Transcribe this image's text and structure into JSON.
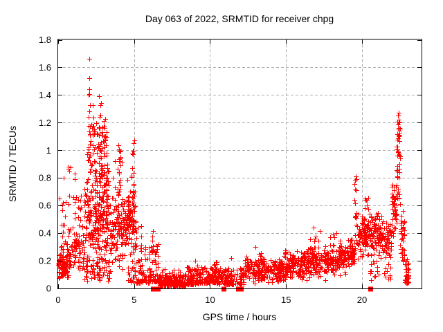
{
  "chart_data": {
    "type": "scatter",
    "title": "Day 063 of 2022, SRMTID for receiver chpg",
    "xlabel": "GPS time / hours",
    "ylabel": "SRMTID / TECUs",
    "xlim": [
      0,
      23.92
    ],
    "ylim": [
      0,
      1.8
    ],
    "xticks": [
      0,
      5,
      10,
      15,
      20
    ],
    "xtick_labels": [
      "0",
      "5",
      "10",
      "15",
      "20"
    ],
    "yticks": [
      0,
      0.2,
      0.4,
      0.6,
      0.8,
      1,
      1.2,
      1.4,
      1.6,
      1.8
    ],
    "ytick_labels": [
      "0",
      "0.2",
      "0.4",
      "0.6",
      "0.8",
      "1",
      "1.2",
      "1.4",
      "1.6",
      "1.8"
    ],
    "grid": {
      "visible": true,
      "style": "dashed",
      "color": "#aaaaaa"
    },
    "legend": "none",
    "marker": {
      "shape": "plus",
      "size": 7,
      "color": "#ff0000"
    },
    "flagged_squares_y0": [
      6.25,
      6.55,
      10.9,
      11.85,
      12.05,
      20.55
    ],
    "notable_points": [
      [
        2.06,
        1.66
      ],
      [
        2.06,
        1.52
      ],
      [
        22.42,
        1.27
      ],
      [
        0.35,
        0.8
      ],
      [
        0.7,
        0.88
      ],
      [
        0.1,
        0.65
      ],
      [
        5.0,
        1.07
      ],
      [
        4.9,
        0.97
      ],
      [
        5.3,
        0.44
      ],
      [
        0.3,
        0.62
      ],
      [
        13.0,
        0.3
      ],
      [
        16.8,
        0.44
      ],
      [
        18.3,
        0.4
      ],
      [
        9.0,
        0.2
      ],
      [
        11.4,
        0.22
      ],
      [
        19.55,
        0.78
      ]
    ],
    "cloud_seed": 2022063,
    "cloud_clusters": [
      [
        0.0,
        0.6,
        85,
        0.04,
        0.28,
        "mid"
      ],
      [
        0.0,
        0.6,
        12,
        0.26,
        0.48,
        "u"
      ],
      [
        0.25,
        0.55,
        5,
        0.5,
        0.72,
        "u"
      ],
      [
        0.55,
        1.2,
        42,
        0.06,
        0.45,
        "mid"
      ],
      [
        0.6,
        1.2,
        14,
        0.42,
        0.88,
        "u"
      ],
      [
        1.05,
        1.7,
        48,
        0.08,
        0.52,
        "mid"
      ],
      [
        1.2,
        1.6,
        8,
        0.5,
        0.68,
        "u"
      ],
      [
        1.7,
        3.4,
        250,
        0.12,
        0.92,
        "mid"
      ],
      [
        1.9,
        3.25,
        85,
        0.78,
        1.22,
        "u"
      ],
      [
        2.0,
        2.12,
        10,
        0.9,
        1.45,
        "u"
      ],
      [
        2.28,
        2.42,
        8,
        1.0,
        1.36,
        "u"
      ],
      [
        2.68,
        2.82,
        10,
        0.88,
        1.4,
        "u"
      ],
      [
        2.98,
        3.1,
        8,
        0.85,
        1.24,
        "u"
      ],
      [
        1.7,
        3.4,
        60,
        0.05,
        0.22,
        "u"
      ],
      [
        3.4,
        4.3,
        105,
        0.1,
        0.72,
        "mid"
      ],
      [
        3.9,
        4.12,
        14,
        0.68,
        1.04,
        "u"
      ],
      [
        3.5,
        4.25,
        10,
        0.72,
        0.95,
        "u"
      ],
      [
        4.3,
        5.15,
        125,
        0.14,
        0.8,
        "mid"
      ],
      [
        4.82,
        4.98,
        10,
        0.7,
        1.06,
        "u"
      ],
      [
        4.55,
        5.15,
        22,
        0.04,
        0.16,
        "u"
      ],
      [
        5.15,
        6.0,
        50,
        0.04,
        0.3,
        "low"
      ],
      [
        5.32,
        5.48,
        10,
        0.14,
        0.46,
        "u"
      ],
      [
        6.0,
        6.6,
        55,
        0.05,
        0.32,
        "low"
      ],
      [
        6.18,
        6.32,
        8,
        0.25,
        0.43,
        "u"
      ],
      [
        6.6,
        8.4,
        195,
        0.02,
        0.1,
        "low"
      ],
      [
        6.6,
        8.4,
        14,
        0.08,
        0.15,
        "u"
      ],
      [
        8.4,
        9.3,
        88,
        0.03,
        0.17,
        "low"
      ],
      [
        9.3,
        10.6,
        115,
        0.04,
        0.16,
        "low"
      ],
      [
        10.25,
        10.6,
        12,
        0.12,
        0.2,
        "u"
      ],
      [
        10.6,
        12.3,
        135,
        0.03,
        0.15,
        "low"
      ],
      [
        12.3,
        12.7,
        32,
        0.04,
        0.25,
        "mid"
      ],
      [
        12.7,
        14.1,
        115,
        0.03,
        0.22,
        "mid"
      ],
      [
        13.2,
        13.5,
        10,
        0.18,
        0.26,
        "u"
      ],
      [
        14.1,
        15.1,
        105,
        0.04,
        0.24,
        "mid"
      ],
      [
        14.8,
        15.05,
        8,
        0.22,
        0.3,
        "u"
      ],
      [
        15.1,
        16.2,
        105,
        0.05,
        0.28,
        "mid"
      ],
      [
        16.2,
        17.6,
        135,
        0.06,
        0.31,
        "mid"
      ],
      [
        16.5,
        17.4,
        10,
        0.28,
        0.42,
        "u"
      ],
      [
        17.6,
        19.0,
        125,
        0.08,
        0.33,
        "mid"
      ],
      [
        17.9,
        18.8,
        8,
        0.3,
        0.4,
        "u"
      ],
      [
        19.0,
        19.55,
        55,
        0.12,
        0.4,
        "mid"
      ],
      [
        19.5,
        19.65,
        13,
        0.44,
        0.82,
        "u"
      ],
      [
        19.65,
        20.5,
        88,
        0.2,
        0.58,
        "mid"
      ],
      [
        20.1,
        20.45,
        8,
        0.55,
        0.66,
        "u"
      ],
      [
        20.5,
        21.3,
        88,
        0.2,
        0.58,
        "mid"
      ],
      [
        20.55,
        21.1,
        14,
        0.06,
        0.2,
        "u"
      ],
      [
        21.3,
        21.95,
        65,
        0.18,
        0.5,
        "mid"
      ],
      [
        21.4,
        21.9,
        10,
        0.07,
        0.18,
        "u"
      ],
      [
        21.95,
        22.3,
        42,
        0.33,
        0.8,
        "mid"
      ],
      [
        22.28,
        22.52,
        34,
        0.58,
        1.12,
        "u"
      ],
      [
        22.33,
        22.5,
        14,
        1.1,
        1.28,
        "u"
      ],
      [
        22.52,
        22.8,
        38,
        0.15,
        0.62,
        "mid"
      ],
      [
        22.8,
        23.1,
        32,
        0.04,
        0.22,
        "low"
      ]
    ]
  },
  "colors": {
    "background": "#ffffff",
    "axis": "#000000",
    "grid": "#aaaaaa",
    "marker": "#ff0000"
  }
}
